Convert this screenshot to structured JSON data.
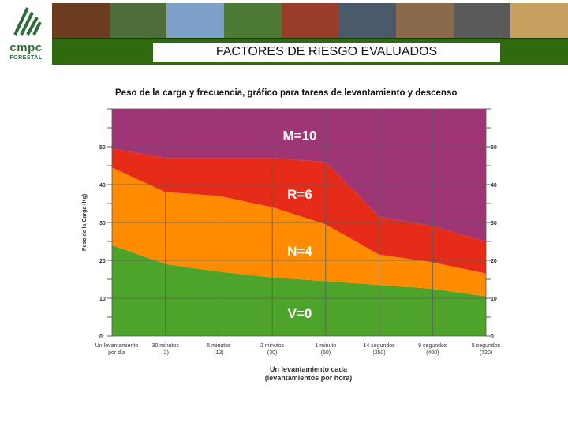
{
  "brand": {
    "line1": "cmpc",
    "line2": "FORESTAL"
  },
  "header": {
    "title": "FACTORES DE RIESGO EVALUADOS",
    "photos": [
      "#6b3c1d",
      "#4e6f3c",
      "#7da0c8",
      "#4d7a35",
      "#9a3c2a",
      "#4a5a6a",
      "#8a6a4a",
      "#5a5a5a",
      "#c8a060"
    ]
  },
  "chart_data": {
    "type": "area",
    "title": "Peso de la carga y frecuencia, gráfico para tareas de levantamiento y descenso",
    "xlabel": "Un levantamiento cada\n(levantamientos por hora)",
    "ylabel": "Peso de la Carga (Kg)",
    "ylim": [
      0,
      60
    ],
    "yticks": [
      0,
      10,
      20,
      30,
      40,
      50
    ],
    "categories": [
      "Un levantamiento\npor día",
      "30 minutos\n(2)",
      "5 minutos\n(12)",
      "2 minutos\n(30)",
      "1 minuto\n(60)",
      "14 segundos\n(250)",
      "9 segundos\n(400)",
      "5 segundos\n(720)"
    ],
    "boundaries": [
      {
        "name": "V/N",
        "y": [
          24,
          19,
          17,
          15.5,
          14.5,
          13.5,
          12.5,
          10.5
        ]
      },
      {
        "name": "N/R",
        "y": [
          44.5,
          38,
          37,
          34,
          29.5,
          21.5,
          19.5,
          16.5
        ]
      },
      {
        "name": "R/M",
        "y": [
          49.5,
          47,
          47,
          47,
          46,
          31.5,
          29,
          25
        ]
      }
    ],
    "zones": [
      {
        "label": "V=0",
        "color": "#4ea32a",
        "label_y": 6
      },
      {
        "label": "N=4",
        "color": "#ff8c00",
        "label_y": 22.5
      },
      {
        "label": "R=6",
        "color": "#e62c18",
        "label_y": 37.5
      },
      {
        "label": "M=10",
        "color": "#a03576",
        "label_y": 53
      }
    ],
    "grid": true
  }
}
